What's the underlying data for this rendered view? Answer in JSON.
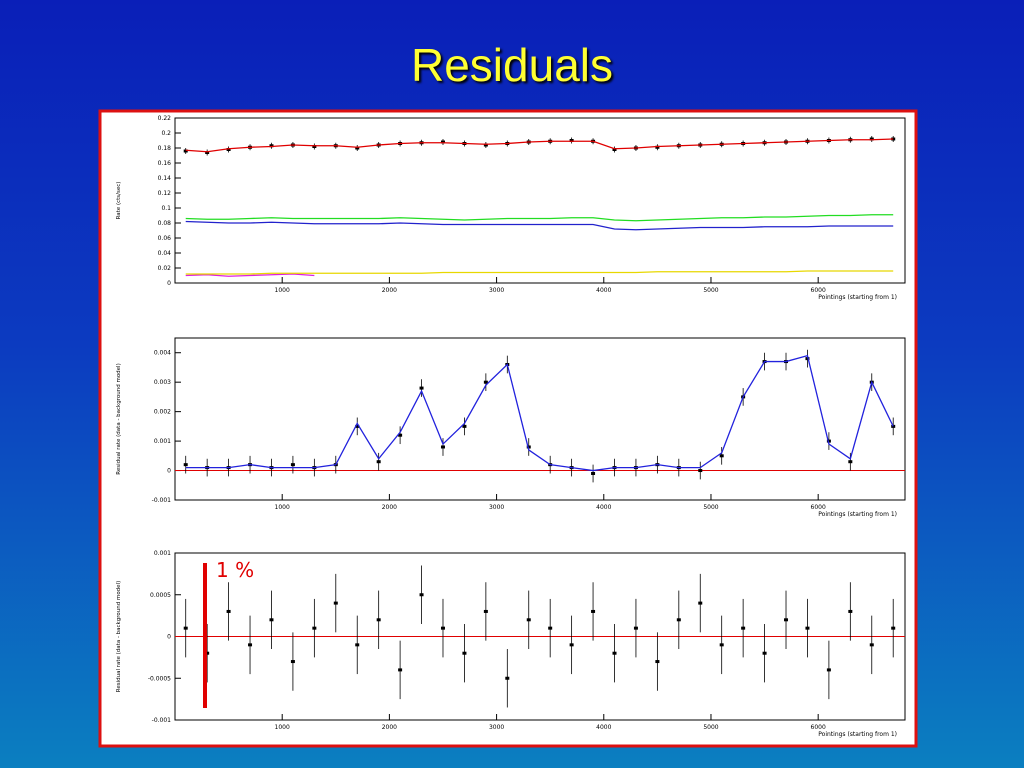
{
  "title": "Residuals",
  "chart_data": [
    {
      "type": "line",
      "ylabel": "Rate (cts/sec)",
      "xlabel": "Pointings (starting from 1)",
      "xlim": [
        0,
        6810
      ],
      "xticks": [
        1000,
        2000,
        3000,
        4000,
        5000,
        6000
      ],
      "ylim": [
        0,
        0.22
      ],
      "yticks": [
        0,
        0.02,
        0.04,
        0.06,
        0.08,
        0.1,
        0.12,
        0.14,
        0.16,
        0.18,
        0.2,
        0.22
      ],
      "x": [
        100,
        300,
        500,
        700,
        900,
        1100,
        1300,
        1500,
        1700,
        1900,
        2100,
        2300,
        2500,
        2700,
        2900,
        3100,
        3300,
        3500,
        3700,
        3900,
        4100,
        4300,
        4500,
        4700,
        4900,
        5100,
        5300,
        5500,
        5700,
        5900,
        6100,
        6300,
        6500,
        6700
      ],
      "series": [
        {
          "color": "#000000",
          "markers": true,
          "errors": [
            0.004,
            0.004,
            0.004,
            0.004,
            0.004,
            0.004,
            0.004,
            0.004,
            0.004,
            0.004,
            0.004,
            0.004,
            0.004,
            0.004,
            0.004,
            0.004,
            0.004,
            0.004,
            0.004,
            0.004,
            0.004,
            0.004,
            0.004,
            0.004,
            0.004,
            0.004,
            0.004,
            0.004,
            0.004,
            0.004,
            0.004,
            0.004,
            0.004,
            0.004
          ],
          "values": [
            0.176,
            0.174,
            0.178,
            0.181,
            0.183,
            0.184,
            0.182,
            0.183,
            0.18,
            0.184,
            0.186,
            0.187,
            0.188,
            0.186,
            0.184,
            0.186,
            0.188,
            0.189,
            0.19,
            0.189,
            0.178,
            0.18,
            0.181,
            0.183,
            0.184,
            0.185,
            0.186,
            0.187,
            0.188,
            0.189,
            0.19,
            0.191,
            0.192,
            0.192
          ]
        },
        {
          "color": "#e00000",
          "values": [
            0.177,
            0.175,
            0.179,
            0.181,
            0.182,
            0.184,
            0.183,
            0.183,
            0.181,
            0.184,
            0.186,
            0.187,
            0.187,
            0.186,
            0.185,
            0.186,
            0.188,
            0.189,
            0.189,
            0.189,
            0.179,
            0.18,
            0.182,
            0.183,
            0.184,
            0.185,
            0.186,
            0.187,
            0.188,
            0.189,
            0.19,
            0.191,
            0.191,
            0.192
          ]
        },
        {
          "color": "#22dd22",
          "values": [
            0.086,
            0.085,
            0.085,
            0.086,
            0.087,
            0.086,
            0.086,
            0.086,
            0.086,
            0.086,
            0.087,
            0.086,
            0.085,
            0.084,
            0.085,
            0.086,
            0.086,
            0.086,
            0.087,
            0.087,
            0.084,
            0.083,
            0.084,
            0.085,
            0.086,
            0.087,
            0.087,
            0.088,
            0.088,
            0.089,
            0.09,
            0.09,
            0.091,
            0.091
          ]
        },
        {
          "color": "#2222cc",
          "values": [
            0.082,
            0.081,
            0.08,
            0.08,
            0.081,
            0.08,
            0.079,
            0.079,
            0.079,
            0.079,
            0.08,
            0.079,
            0.078,
            0.078,
            0.078,
            0.078,
            0.078,
            0.078,
            0.078,
            0.078,
            0.072,
            0.071,
            0.072,
            0.073,
            0.074,
            0.074,
            0.074,
            0.075,
            0.075,
            0.075,
            0.076,
            0.076,
            0.076,
            0.076
          ]
        },
        {
          "color": "#dd22dd",
          "values": [
            0.01,
            0.011,
            0.009,
            0.01,
            0.011,
            0.012,
            0.01,
            null,
            null,
            null,
            null,
            null,
            null,
            null,
            null,
            null,
            null,
            null,
            null,
            null,
            null,
            null,
            null,
            null,
            null,
            null,
            null,
            null,
            null,
            null,
            null,
            null,
            null,
            null
          ]
        },
        {
          "color": "#e8d800",
          "values": [
            0.012,
            0.012,
            0.012,
            0.012,
            0.013,
            0.013,
            0.013,
            0.013,
            0.013,
            0.013,
            0.013,
            0.013,
            0.014,
            0.014,
            0.014,
            0.014,
            0.014,
            0.014,
            0.014,
            0.014,
            0.014,
            0.014,
            0.015,
            0.015,
            0.015,
            0.015,
            0.015,
            0.015,
            0.015,
            0.016,
            0.016,
            0.016,
            0.016,
            0.016
          ]
        }
      ]
    },
    {
      "type": "line",
      "ylabel": "Residual rate (data - background model)",
      "xlabel": "Pointings (starting from 1)",
      "xlim": [
        0,
        6810
      ],
      "xticks": [
        1000,
        2000,
        3000,
        4000,
        5000,
        6000
      ],
      "ylim": [
        -0.001,
        0.0045
      ],
      "yticks": [
        -0.001,
        0,
        0.001,
        0.002,
        0.003,
        0.004
      ],
      "zero_line_color": "#e00000",
      "x": [
        100,
        300,
        500,
        700,
        900,
        1100,
        1300,
        1500,
        1700,
        1900,
        2100,
        2300,
        2500,
        2700,
        2900,
        3100,
        3300,
        3500,
        3700,
        3900,
        4100,
        4300,
        4500,
        4700,
        4900,
        5100,
        5300,
        5500,
        5700,
        5900,
        6100,
        6300,
        6500,
        6700
      ],
      "series": [
        {
          "color": "#000000",
          "markers": true,
          "errors": [
            0.0003,
            0.0003,
            0.0003,
            0.0003,
            0.0003,
            0.0003,
            0.0003,
            0.0003,
            0.0003,
            0.0003,
            0.0003,
            0.0003,
            0.0003,
            0.0003,
            0.0003,
            0.0003,
            0.0003,
            0.0003,
            0.0003,
            0.0003,
            0.0003,
            0.0003,
            0.0003,
            0.0003,
            0.0003,
            0.0003,
            0.0003,
            0.0003,
            0.0003,
            0.0003,
            0.0003,
            0.0003,
            0.0003,
            0.0003
          ],
          "values": [
            0.0002,
            0.0001,
            0.0001,
            0.0002,
            0.0001,
            0.0002,
            0.0001,
            0.0002,
            0.0015,
            0.0003,
            0.0012,
            0.0028,
            0.0008,
            0.0015,
            0.003,
            0.0036,
            0.0008,
            0.0002,
            0.0001,
            -0.0001,
            0.0001,
            0.0001,
            0.0002,
            0.0001,
            0,
            0.0005,
            0.0025,
            0.0037,
            0.0037,
            0.0038,
            0.001,
            0.0003,
            0.003,
            0.0015
          ]
        },
        {
          "color": "#2222dd",
          "values": [
            0.0001,
            0.0001,
            0.0001,
            0.0002,
            0.0001,
            0.0001,
            0.0001,
            0.0002,
            0.0016,
            0.0004,
            0.0013,
            0.0027,
            0.0009,
            0.0016,
            0.0029,
            0.0036,
            0.0007,
            0.0002,
            0.0001,
            0,
            0.0001,
            0.0001,
            0.0002,
            0.0001,
            0.0001,
            0.0006,
            0.0025,
            0.0037,
            0.0037,
            0.0039,
            0.0009,
            0.0004,
            0.003,
            0.0015
          ]
        }
      ]
    },
    {
      "type": "line",
      "ylabel": "Residual rate (data - background model)",
      "xlabel": "Pointings (starting from 1)",
      "annotation": "1 %",
      "xlim": [
        0,
        6810
      ],
      "xticks": [
        1000,
        2000,
        3000,
        4000,
        5000,
        6000
      ],
      "ylim": [
        -0.001,
        0.001
      ],
      "yticks": [
        -0.001,
        -0.0005,
        0,
        0.0005,
        0.001
      ],
      "zero_line_color": "#e00000",
      "x": [
        100,
        300,
        500,
        700,
        900,
        1100,
        1300,
        1500,
        1700,
        1900,
        2100,
        2300,
        2500,
        2700,
        2900,
        3100,
        3300,
        3500,
        3700,
        3900,
        4100,
        4300,
        4500,
        4700,
        4900,
        5100,
        5300,
        5500,
        5700,
        5900,
        6100,
        6300,
        6500,
        6700
      ],
      "series": [
        {
          "color": "#000000",
          "markers": true,
          "errors": [
            0.00035,
            0.00035,
            0.00035,
            0.00035,
            0.00035,
            0.00035,
            0.00035,
            0.00035,
            0.00035,
            0.00035,
            0.00035,
            0.00035,
            0.00035,
            0.00035,
            0.00035,
            0.00035,
            0.00035,
            0.00035,
            0.00035,
            0.00035,
            0.00035,
            0.00035,
            0.00035,
            0.00035,
            0.00035,
            0.00035,
            0.00035,
            0.00035,
            0.00035,
            0.00035,
            0.00035,
            0.00035,
            0.00035,
            0.00035
          ],
          "values": [
            0.0001,
            -0.0002,
            0.0003,
            -0.0001,
            0.0002,
            -0.0003,
            0.0001,
            0.0004,
            -0.0001,
            0.0002,
            -0.0004,
            0.0005,
            0.0001,
            -0.0002,
            0.0003,
            -0.0005,
            0.0002,
            0.0001,
            -0.0001,
            0.0003,
            -0.0002,
            0.0001,
            -0.0003,
            0.0002,
            0.0004,
            -0.0001,
            0.0001,
            -0.0002,
            0.0002,
            0.0001,
            -0.0004,
            0.0003,
            -0.0001,
            0.0001
          ]
        }
      ]
    }
  ]
}
